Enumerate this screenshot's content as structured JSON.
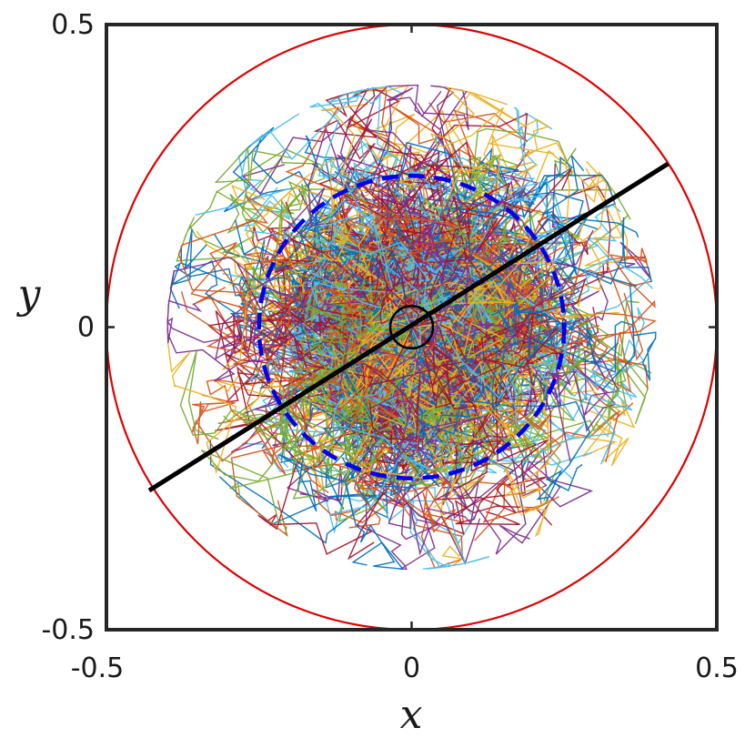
{
  "chart_data": {
    "type": "line",
    "xlabel": "x",
    "ylabel": "y",
    "xlim": [
      -0.5,
      0.5
    ],
    "ylim": [
      -0.5,
      0.5
    ],
    "xticks": [
      "-0.5",
      "0",
      "0.5"
    ],
    "yticks": [
      "0.5",
      "0",
      "-0.5"
    ],
    "grid": false,
    "colors": {
      "outer_circle": "#e00000",
      "dashed_circle": "#0000ee",
      "diameter_line": "#000000",
      "center_circle": "#000000",
      "axes": "#262626",
      "walk_palette": [
        "#0072BD",
        "#D95319",
        "#EDB120",
        "#7E2F8E",
        "#77AC30",
        "#4DBEEE",
        "#A2142F"
      ]
    },
    "series": [
      {
        "kind": "outer-circle",
        "center": [
          0,
          0
        ],
        "radius": 0.5
      },
      {
        "kind": "dashed-circle",
        "center": [
          0,
          0
        ],
        "radius": 0.25
      },
      {
        "kind": "center-circle",
        "center": [
          0,
          0
        ],
        "radius": 0.035
      },
      {
        "kind": "diameter-line",
        "x": [
          -0.43,
          0.42
        ],
        "y": [
          -0.27,
          0.27
        ]
      },
      {
        "kind": "random-walk-cloud",
        "center": [
          0,
          0
        ],
        "approx_extent": 0.4
      }
    ]
  }
}
